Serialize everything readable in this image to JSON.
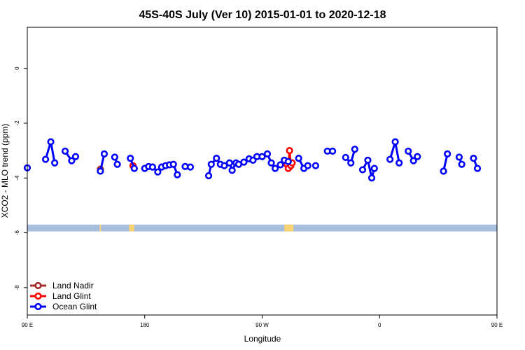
{
  "chart_data": {
    "type": "line",
    "title": "45S-40S July (Ver 10)   2015-01-01 to 2020-12-18",
    "xlabel": "Longitude",
    "ylabel": "XCO2 - MLO trend (ppm)",
    "xlim": [
      90,
      450
    ],
    "ylim": [
      -9,
      1.5
    ],
    "x_ticks": [
      {
        "value": 90,
        "label": "90 E"
      },
      {
        "value": 180,
        "label": "180"
      },
      {
        "value": 270,
        "label": "90 W"
      },
      {
        "value": 360,
        "label": "0"
      },
      {
        "value": 450,
        "label": "90 E"
      },
      {
        "value": 540,
        "label": "180"
      }
    ],
    "y_ticks": [
      {
        "value": 0,
        "label": "0"
      },
      {
        "value": -2,
        "label": "-2"
      },
      {
        "value": -4,
        "label": "-4"
      },
      {
        "value": -6,
        "label": "-6"
      },
      {
        "value": -8,
        "label": "-8"
      }
    ],
    "map_strip": {
      "y_range": [
        -5.95,
        -5.7
      ],
      "ocean_color": "#a8bedf",
      "land_color": "#f6d271",
      "land_x": [
        {
          "x0": 145.5,
          "x1": 146.5
        },
        {
          "x0": 168,
          "x1": 172
        },
        {
          "x0": 287,
          "x1": 294
        },
        {
          "x0": 455,
          "x1": 456.5
        },
        {
          "x0": 480,
          "x1": 484
        }
      ]
    },
    "legend_position": "bottom-left",
    "series": [
      {
        "name": "Land Nadir",
        "color": "#a52a2a",
        "segments": [
          [
            {
              "x": 146,
              "y": -3.68
            }
          ],
          [
            {
              "x": 171,
              "y": -3.55
            }
          ],
          [
            {
              "x": 291,
              "y": -3.6
            }
          ],
          [
            {
              "x": 455,
              "y": -3.7
            }
          ],
          [
            {
              "x": 483,
              "y": -3.6
            }
          ]
        ]
      },
      {
        "name": "Land Glint",
        "color": "#ff0000",
        "segments": [
          [
            {
              "x": 171,
              "y": -3.55
            }
          ],
          [
            {
              "x": 289,
              "y": -3.5
            },
            {
              "x": 290,
              "y": -3.65
            },
            {
              "x": 291,
              "y": -3.0
            },
            {
              "x": 292,
              "y": -3.55
            },
            {
              "x": 293,
              "y": -3.45
            }
          ],
          [
            {
              "x": 483,
              "y": -3.6
            }
          ]
        ]
      },
      {
        "name": "Ocean Glint",
        "color": "#0000ff",
        "segments": [
          [
            {
              "x": 90,
              "y": -3.63
            }
          ],
          [
            {
              "x": 104,
              "y": -3.32
            },
            {
              "x": 108,
              "y": -2.68
            },
            {
              "x": 111,
              "y": -3.45
            }
          ],
          [
            {
              "x": 119,
              "y": -3.02
            },
            {
              "x": 124,
              "y": -3.37
            },
            {
              "x": 127,
              "y": -3.22
            }
          ],
          [
            {
              "x": 146,
              "y": -3.75
            },
            {
              "x": 149,
              "y": -3.12
            }
          ],
          [
            {
              "x": 157,
              "y": -3.24
            },
            {
              "x": 159,
              "y": -3.5
            }
          ],
          [
            {
              "x": 169,
              "y": -3.28
            },
            {
              "x": 172,
              "y": -3.65
            }
          ],
          [
            {
              "x": 180,
              "y": -3.65
            },
            {
              "x": 183,
              "y": -3.58
            },
            {
              "x": 186,
              "y": -3.6
            },
            {
              "x": 190,
              "y": -3.78
            },
            {
              "x": 193,
              "y": -3.6
            },
            {
              "x": 196,
              "y": -3.55
            },
            {
              "x": 199,
              "y": -3.52
            },
            {
              "x": 202,
              "y": -3.5
            },
            {
              "x": 205,
              "y": -3.88
            }
          ],
          [
            {
              "x": 211,
              "y": -3.58
            },
            {
              "x": 215,
              "y": -3.6
            }
          ],
          [
            {
              "x": 229,
              "y": -3.92
            },
            {
              "x": 231,
              "y": -3.5
            },
            {
              "x": 235,
              "y": -3.28
            },
            {
              "x": 238,
              "y": -3.5
            },
            {
              "x": 241,
              "y": -3.55
            },
            {
              "x": 245,
              "y": -3.45
            },
            {
              "x": 247,
              "y": -3.72
            },
            {
              "x": 250,
              "y": -3.45
            },
            {
              "x": 252,
              "y": -3.5
            },
            {
              "x": 256,
              "y": -3.42
            },
            {
              "x": 260,
              "y": -3.3
            },
            {
              "x": 263,
              "y": -3.35
            },
            {
              "x": 266,
              "y": -3.22
            },
            {
              "x": 270,
              "y": -3.22
            },
            {
              "x": 274,
              "y": -3.12
            },
            {
              "x": 277,
              "y": -3.45
            },
            {
              "x": 280,
              "y": -3.65
            },
            {
              "x": 284,
              "y": -3.52
            },
            {
              "x": 287,
              "y": -3.35
            },
            {
              "x": 290,
              "y": -3.4
            }
          ],
          [
            {
              "x": 298,
              "y": -3.28
            },
            {
              "x": 302,
              "y": -3.65
            },
            {
              "x": 305,
              "y": -3.55
            }
          ],
          [
            {
              "x": 311,
              "y": -3.55
            }
          ],
          [
            {
              "x": 320,
              "y": -3.02
            },
            {
              "x": 324,
              "y": -3.02
            }
          ],
          [
            {
              "x": 334,
              "y": -3.25
            },
            {
              "x": 338,
              "y": -3.45
            },
            {
              "x": 341,
              "y": -2.95
            }
          ],
          [
            {
              "x": 347,
              "y": -3.7
            },
            {
              "x": 351,
              "y": -3.35
            },
            {
              "x": 354,
              "y": -4.0
            },
            {
              "x": 356,
              "y": -3.65
            }
          ],
          [
            {
              "x": 368,
              "y": -3.32
            },
            {
              "x": 372,
              "y": -2.68
            },
            {
              "x": 375,
              "y": -3.45
            }
          ],
          [
            {
              "x": 382,
              "y": -3.02
            },
            {
              "x": 386,
              "y": -3.37
            },
            {
              "x": 389,
              "y": -3.22
            }
          ],
          [
            {
              "x": 409,
              "y": -3.75
            },
            {
              "x": 412,
              "y": -3.12
            }
          ],
          [
            {
              "x": 421,
              "y": -3.24
            },
            {
              "x": 423,
              "y": -3.5
            }
          ],
          [
            {
              "x": 432,
              "y": -3.28
            },
            {
              "x": 435,
              "y": -3.65
            }
          ]
        ]
      }
    ]
  }
}
